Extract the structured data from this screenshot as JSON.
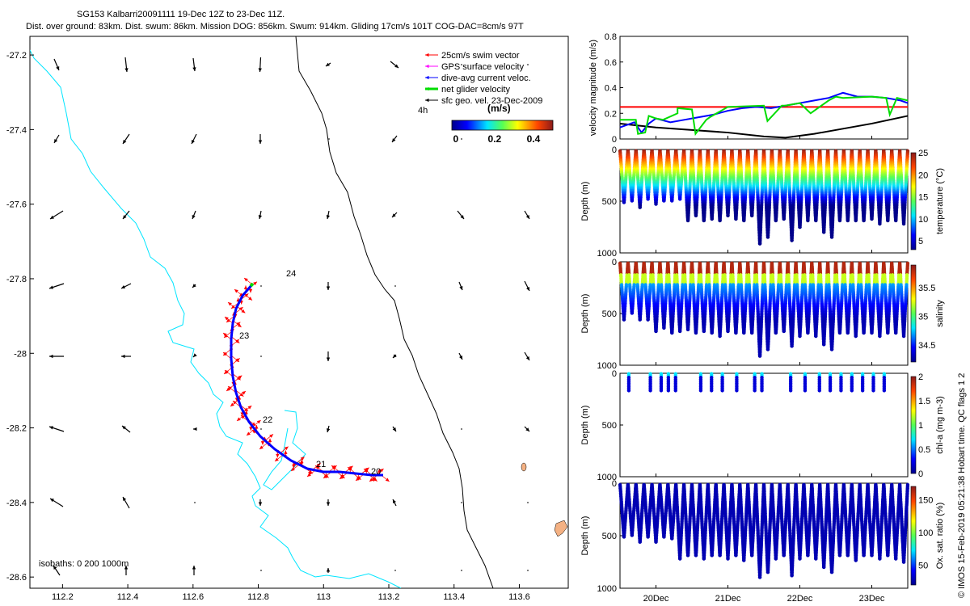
{
  "header": {
    "line1": "SG153 Kalbarri20091111 19-Dec 12Z to 23-Dec 11Z.",
    "line2": "Dist. over ground: 83km. Dist. swum: 86km. Mission DOG: 856km. Swum: 914km. Gliding 17cm/s 101T COG-DAC=8cm/s 97T"
  },
  "map": {
    "x_ticks": [
      "112.2",
      "112.4",
      "112.6",
      "112.8",
      "113",
      "113.2",
      "113.4",
      "113.6"
    ],
    "y_ticks": [
      "-27.2",
      "-27.4",
      "-27.6",
      "-27.8",
      "-28",
      "-28.2",
      "-28.4",
      "-28.6"
    ],
    "isobaths_label": "isobaths: 0   200  1000m",
    "legend": [
      {
        "label": "25cm/s swim vector",
        "color": "#ff0000"
      },
      {
        "label": "GPS surface velocity",
        "color": "#ff00ff"
      },
      {
        "label": "dive-avg current veloc.",
        "color": "#0000ff"
      },
      {
        "label": "net glider velocity",
        "color": "#00dd00"
      },
      {
        "label": "sfc geo. vel. 23-Dec-2009",
        "color": "#000000"
      }
    ],
    "legend_extra": "4h",
    "colorbar": {
      "title": "(m/s)",
      "ticks": [
        "0",
        "0.2",
        "0.4"
      ]
    },
    "day_labels": [
      "24",
      "23",
      "22",
      "21",
      "20"
    ],
    "colors": {
      "coast": "#00e5ff",
      "isobath": "#000000",
      "track": "#0000ff",
      "swim": "#ff0000",
      "net": "#00dd00",
      "land": "#f4b183"
    }
  },
  "side_label": "© IMOS 15-Feb-2019 05:21:38 Hobart time. QC flags 1  2",
  "x_dates": [
    "20Dec",
    "21Dec",
    "22Dec",
    "23Dec"
  ],
  "chart_data": [
    {
      "type": "line",
      "ylabel": "velocity magnitude (m/s)",
      "ylim": [
        0,
        0.8
      ],
      "yticks": [
        "0",
        "0.2",
        "0.4",
        "0.6",
        "0.8"
      ],
      "series": [
        {
          "color": "#ff0000",
          "x": [
            19.5,
            23.5
          ],
          "y": [
            0.25,
            0.25
          ]
        },
        {
          "color": "#000000",
          "x": [
            19.5,
            20.0,
            20.5,
            21.0,
            21.5,
            21.8,
            22.2,
            22.6,
            23.0,
            23.5
          ],
          "y": [
            0.12,
            0.09,
            0.07,
            0.05,
            0.02,
            0.01,
            0.04,
            0.08,
            0.12,
            0.18
          ]
        },
        {
          "color": "#0000ff",
          "x": [
            19.5,
            19.7,
            19.8,
            19.9,
            20.0,
            20.2,
            20.4,
            20.6,
            20.8,
            21.0,
            21.2,
            21.4,
            21.6,
            21.8,
            22.0,
            22.2,
            22.4,
            22.6,
            22.8,
            23.0,
            23.2,
            23.4,
            23.5
          ],
          "y": [
            0.09,
            0.13,
            0.05,
            0.12,
            0.16,
            0.13,
            0.15,
            0.17,
            0.19,
            0.22,
            0.24,
            0.25,
            0.24,
            0.26,
            0.28,
            0.3,
            0.32,
            0.36,
            0.33,
            0.33,
            0.32,
            0.3,
            0.28
          ]
        },
        {
          "color": "#00dd00",
          "x": [
            19.5,
            19.72,
            19.75,
            19.85,
            19.9,
            20.0,
            20.1,
            20.3,
            20.3,
            20.5,
            20.55,
            20.7,
            20.75,
            21.0,
            21.5,
            21.55,
            21.75,
            21.8,
            22.0,
            22.15,
            22.4,
            22.5,
            22.6,
            23.0,
            23.2,
            23.25,
            23.35,
            23.5
          ],
          "y": [
            0.15,
            0.15,
            0.04,
            0.05,
            0.18,
            0.16,
            0.15,
            0.2,
            0.24,
            0.23,
            0.04,
            0.15,
            0.17,
            0.25,
            0.26,
            0.14,
            0.26,
            0.26,
            0.28,
            0.2,
            0.3,
            0.33,
            0.32,
            0.33,
            0.32,
            0.19,
            0.32,
            0.3
          ]
        }
      ]
    },
    {
      "type": "scatter",
      "ylabel": "Depth (m)",
      "ylim": [
        1000,
        0
      ],
      "yticks": [
        "0",
        "500",
        "1000"
      ],
      "colorbar": {
        "label": "temperature (°C)",
        "ticks": [
          "5",
          "10",
          "15",
          "20",
          "25"
        ],
        "range": [
          3,
          25
        ],
        "top": "#b22222",
        "bottom": "#00008b"
      },
      "cycle_max_depth": [
        520,
        500,
        560,
        480,
        530,
        510,
        500,
        480,
        700,
        650,
        700,
        680,
        700,
        640,
        680,
        700,
        650,
        920,
        860,
        700,
        680,
        880,
        760,
        690,
        700,
        800,
        860,
        700,
        700,
        690,
        700,
        680,
        720,
        700,
        700,
        720
      ],
      "values_top": 25,
      "values_bottom": 4
    },
    {
      "type": "scatter",
      "ylabel": "Depth (m)",
      "ylim": [
        1000,
        0
      ],
      "yticks": [
        "0",
        "500",
        "1000"
      ],
      "colorbar": {
        "label": "salinity",
        "ticks": [
          "34.5",
          "35",
          "35.5"
        ],
        "range": [
          34.2,
          35.9
        ],
        "top": "#b22222",
        "bottom": "#00008b"
      },
      "cycle_max_depth": [
        560,
        500,
        560,
        560,
        680,
        640,
        700,
        680,
        660,
        700,
        680,
        700,
        720,
        680,
        700,
        700,
        700,
        920,
        860,
        700,
        680,
        820,
        720,
        700,
        720,
        800,
        860,
        700,
        700,
        720,
        700,
        700,
        720,
        700,
        700,
        720
      ]
    },
    {
      "type": "scatter",
      "ylabel": "Depth (m)",
      "ylim": [
        1000,
        0
      ],
      "yticks": [
        "0",
        "500",
        "1000"
      ],
      "colorbar": {
        "label": "chl-a (mg m-3)",
        "ticks": [
          "0",
          "0.5",
          "1",
          "1.5",
          "2"
        ],
        "range": [
          0,
          2
        ],
        "top": "#b22222",
        "bottom": "#00008b"
      },
      "cast_days": [
        19.6,
        19.9,
        20.05,
        20.15,
        20.25,
        20.6,
        20.75,
        20.9,
        21.1,
        21.35,
        21.45,
        21.85,
        22.05,
        22.25,
        22.4,
        22.55,
        22.7,
        22.85,
        23.0,
        23.15
      ]
    },
    {
      "type": "scatter",
      "ylabel": "Depth (m)",
      "ylim": [
        1000,
        0
      ],
      "yticks": [
        "0",
        "500",
        "1000"
      ],
      "colorbar": {
        "label": "Ox. sat. ratio (%)",
        "ticks": [
          "50",
          "100",
          "150"
        ],
        "range": [
          20,
          170
        ],
        "top": "#b22222",
        "bottom": "#00008b"
      },
      "cycle_max_depth": [
        520,
        500,
        560,
        520,
        560,
        520,
        540,
        720,
        700,
        700,
        720,
        700,
        700,
        720,
        700,
        740,
        700,
        900,
        860,
        720,
        700,
        880,
        720,
        700,
        720,
        800,
        860,
        700,
        700,
        740,
        700,
        700,
        720,
        700,
        720,
        760
      ]
    }
  ]
}
